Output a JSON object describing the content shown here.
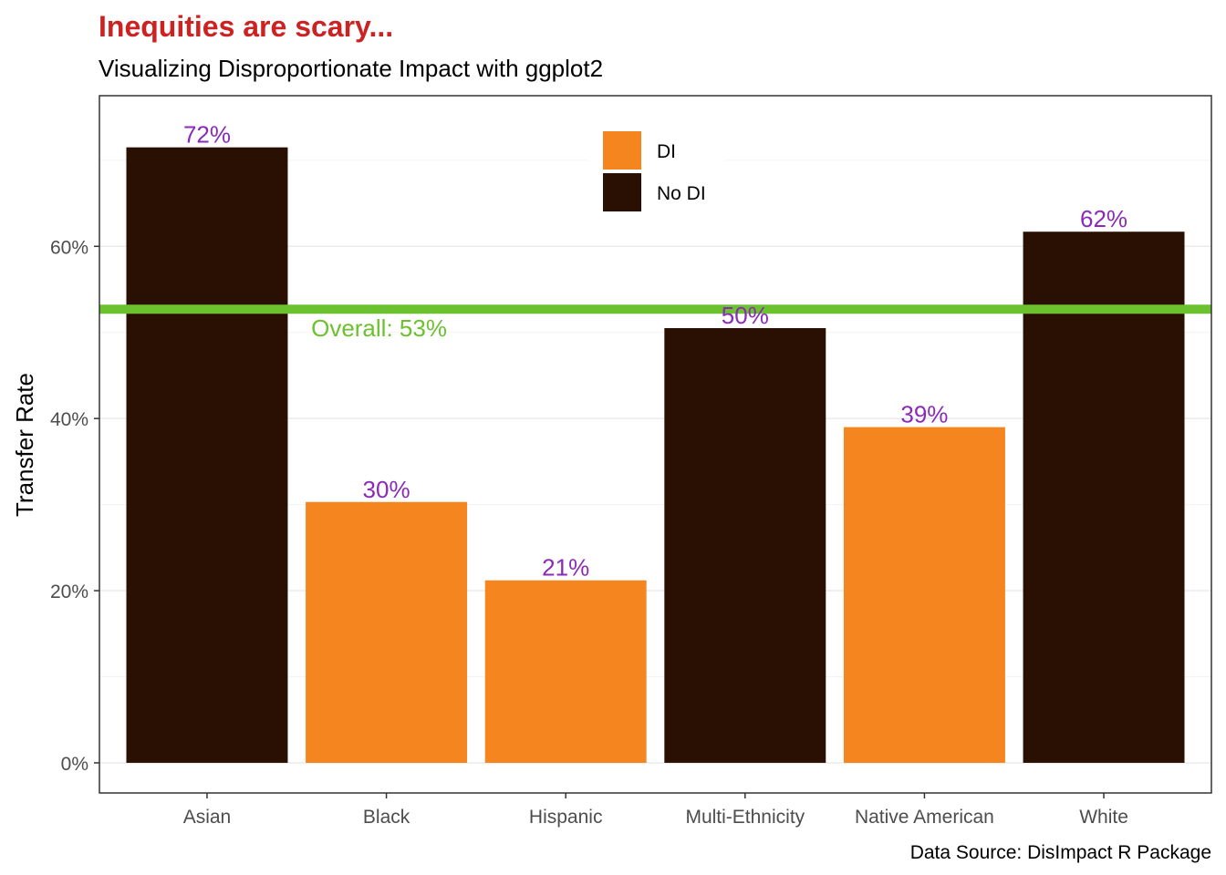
{
  "chart_data": {
    "type": "bar",
    "title": "Inequities are scary...",
    "subtitle": "Visualizing Disproportionate Impact with ggplot2",
    "ylabel": "Transfer Rate",
    "xlabel": "",
    "caption": "Data Source: DisImpact R Package",
    "categories": [
      "Asian",
      "Black",
      "Hispanic",
      "Multi-Ethnicity",
      "Native American",
      "White"
    ],
    "values": [
      0.715,
      0.303,
      0.212,
      0.505,
      0.39,
      0.617
    ],
    "value_labels": [
      "72%",
      "30%",
      "21%",
      "50%",
      "39%",
      "62%"
    ],
    "groups": [
      "No DI",
      "DI",
      "DI",
      "No DI",
      "DI",
      "No DI"
    ],
    "ylim": [
      -0.035,
      0.775
    ],
    "y_ticks": [
      0,
      0.2,
      0.4,
      0.6
    ],
    "y_tick_labels": [
      "0%",
      "20%",
      "40%",
      "60%"
    ],
    "reference_line": {
      "value": 0.527,
      "label": "Overall: 53%"
    },
    "legend": {
      "position": "top-center",
      "entries": [
        {
          "name": "DI",
          "color": "#F5861F"
        },
        {
          "name": "No DI",
          "color": "#2A1002"
        }
      ]
    },
    "grid": true,
    "colors": {
      "di": "#F5861F",
      "no_di": "#2A1002",
      "overall_line": "#6CC12E",
      "bar_label": "#8A2BB8",
      "title": "#CC2222"
    }
  }
}
